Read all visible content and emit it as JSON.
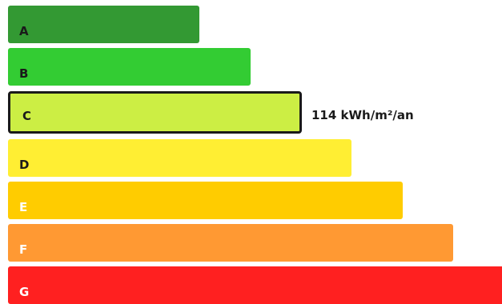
{
  "energy_scale": {
    "ratings": [
      {
        "letter": "A",
        "color": "#339933",
        "text_color": "#1a1a1a"
      },
      {
        "letter": "B",
        "color": "#33cc33",
        "text_color": "#1a1a1a"
      },
      {
        "letter": "C",
        "color": "#ccee44",
        "text_color": "#1a1a1a",
        "selected": true
      },
      {
        "letter": "D",
        "color": "#ffee33",
        "text_color": "#1a1a1a"
      },
      {
        "letter": "E",
        "color": "#ffcc00",
        "text_color": "#ffffff"
      },
      {
        "letter": "F",
        "color": "#ff9933",
        "text_color": "#ffffff"
      },
      {
        "letter": "G",
        "color": "#ff2020",
        "text_color": "#ffffff"
      }
    ],
    "selected_value_label": "114 kWh/m²/an"
  }
}
